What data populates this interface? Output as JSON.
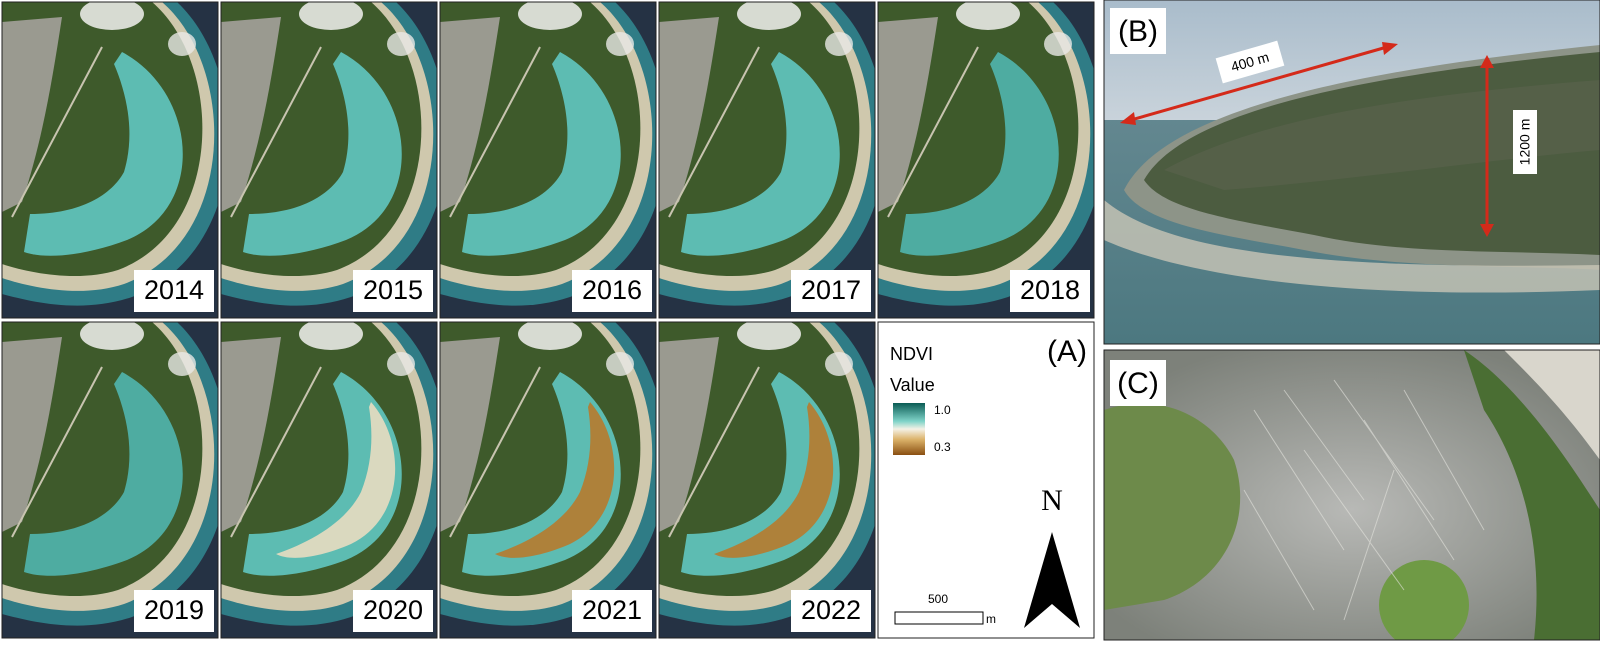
{
  "panel_a": {
    "label": "(A)",
    "years": [
      "2014",
      "2015",
      "2016",
      "2017",
      "2018",
      "2019",
      "2020",
      "2021",
      "2022"
    ],
    "legend": {
      "title": "NDVI",
      "subtitle": "Value",
      "max": "1.0",
      "min": "0.3"
    },
    "scale_bar": {
      "length": "500",
      "unit": "m"
    },
    "north": "N"
  },
  "panel_b": {
    "label": "(B)",
    "width_label": "400 m",
    "height_label": "1200 m"
  },
  "panel_c": {
    "label": "(C)"
  }
}
